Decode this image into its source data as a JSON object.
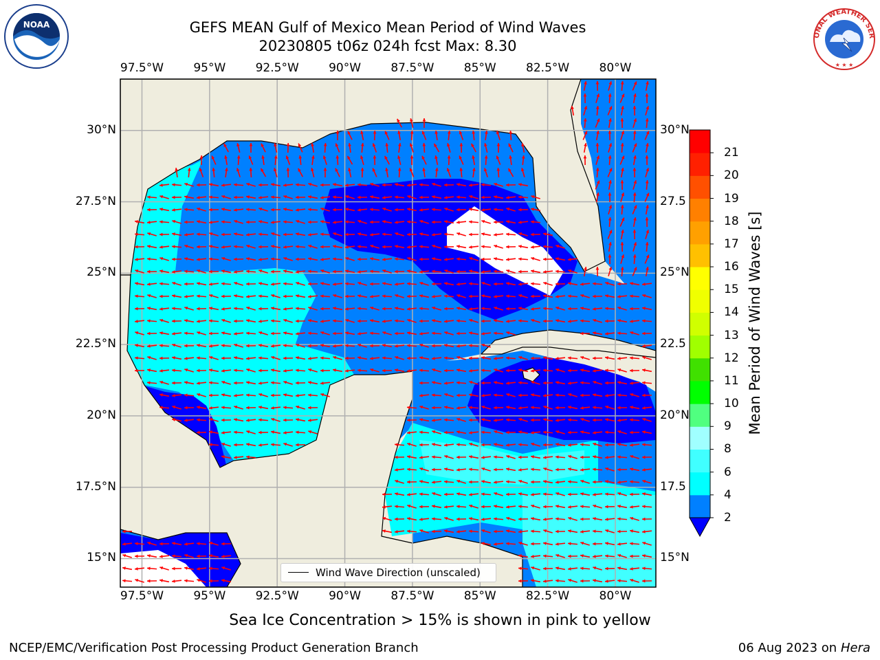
{
  "title": {
    "line1": "GEFS MEAN Gulf of Mexico Mean Period of Wind Waves",
    "line2": "20230805 t06z 024h fcst   Max: 8.30"
  },
  "map": {
    "lon_ticks": [
      "97.5°W",
      "95°W",
      "92.5°W",
      "90°W",
      "87.5°W",
      "85°W",
      "82.5°W",
      "80°W"
    ],
    "lat_ticks_left": [
      "30°N",
      "27.5°N",
      "25°N",
      "22.5°N",
      "20°N",
      "17.5°N",
      "15°N"
    ],
    "lat_ticks_right": [
      "30°N",
      "27.5",
      "25°N",
      "22.5",
      "20°N",
      "17.5",
      "15°N"
    ],
    "lon_range": [
      -98.3,
      -78.5
    ],
    "lat_range": [
      14.0,
      31.8
    ],
    "gridlines": true,
    "land_color": "#efedde",
    "arrow_color": "#ff0000",
    "legend": {
      "entry": "Wind Wave Direction (unscaled)",
      "placement": "lower-center"
    }
  },
  "colorbar": {
    "label": "Mean Period of Wind Waves [s]",
    "ticks": [
      "2",
      "4",
      "6",
      "8",
      "9",
      "10",
      "11",
      "12",
      "13",
      "14",
      "15",
      "16",
      "17",
      "18",
      "19",
      "20",
      "21"
    ],
    "levels": [
      {
        "from": 2,
        "to": 4,
        "color": "#0080ff"
      },
      {
        "from": 4,
        "to": 6,
        "color": "#00ffff"
      },
      {
        "from": 6,
        "to": 8,
        "color": "#40ffff"
      },
      {
        "from": 8,
        "to": 9,
        "color": "#a0ffff"
      },
      {
        "from": 9,
        "to": 10,
        "color": "#50ff80"
      },
      {
        "from": 10,
        "to": 11,
        "color": "#00ff00"
      },
      {
        "from": 11,
        "to": 12,
        "color": "#40e000"
      },
      {
        "from": 12,
        "to": 13,
        "color": "#a0ff00"
      },
      {
        "from": 13,
        "to": 14,
        "color": "#d0ff00"
      },
      {
        "from": 14,
        "to": 15,
        "color": "#f0ff00"
      },
      {
        "from": 15,
        "to": 16,
        "color": "#ffff00"
      },
      {
        "from": 16,
        "to": 17,
        "color": "#ffc000"
      },
      {
        "from": 17,
        "to": 18,
        "color": "#ffa000"
      },
      {
        "from": 18,
        "to": 19,
        "color": "#ff8000"
      },
      {
        "from": 19,
        "to": 20,
        "color": "#ff5000"
      },
      {
        "from": 20,
        "to": 21,
        "color": "#ff2000"
      },
      {
        "from": 21,
        "to": 22,
        "color": "#ff0000"
      }
    ],
    "under_color": "#0000ff"
  },
  "footer": {
    "sea_ice_note": "Sea Ice Concentration > 15% is shown in pink to yellow",
    "branch": "NCEP/EMC/Verification Post Processing Product Generation Branch",
    "date": "06 Aug 2023 on",
    "machine": "Hera"
  },
  "logos": {
    "noaa": "NOAA",
    "nws": "NATIONAL WEATHER SERVICE"
  }
}
